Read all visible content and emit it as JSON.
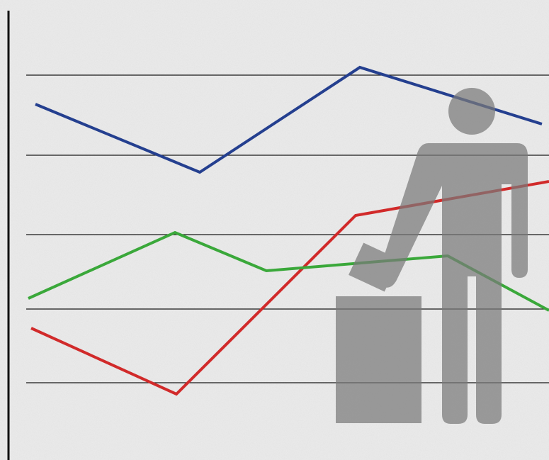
{
  "chart_data": {
    "type": "line",
    "xlim": [
      0,
      775
    ],
    "ylim": [
      0,
      649
    ],
    "yticks": [
      109,
      213,
      318,
      430,
      543
    ],
    "grid": true,
    "series": [
      {
        "color": "#243f8f",
        "x": [
          50,
          282,
          508,
          765
        ],
        "values": [
          502,
          406,
          554,
          474
        ]
      },
      {
        "color": "#d12a2a",
        "x": [
          44,
          249,
          502,
          775
        ],
        "values": [
          186,
          93,
          345,
          393
        ]
      },
      {
        "color": "#3aa83a",
        "x": [
          40,
          247,
          376,
          632,
          775
        ],
        "values": [
          228,
          321,
          267,
          288,
          211
        ]
      }
    ]
  }
}
